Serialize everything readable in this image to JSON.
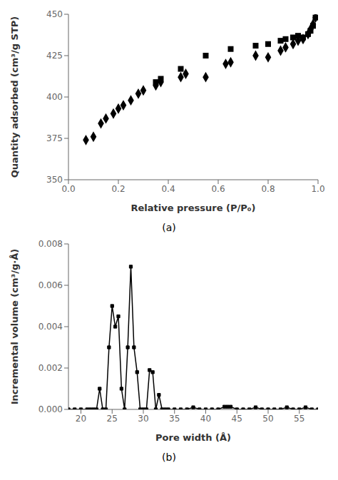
{
  "chart_data": [
    {
      "type": "scatter",
      "xlabel": "Relative pressure (P/P₀)",
      "ylabel": "Quantity adsorbed (cm³/g STP)",
      "annotation": "(a)",
      "xlim": [
        0,
        1.0
      ],
      "xticks": [
        {
          "value": 0,
          "label": "0.0"
        },
        0.2,
        0.4,
        0.6,
        0.8,
        {
          "value": 1.0,
          "label": "1.0"
        }
      ],
      "ylim": [
        350,
        450
      ],
      "yticks": [
        350,
        375,
        400,
        425,
        450
      ],
      "grid": false,
      "series": [
        {
          "x": [
            0.07,
            0.1,
            0.13,
            0.15,
            0.18,
            0.2,
            0.22,
            0.25,
            0.28,
            0.3,
            0.35,
            0.37,
            0.45,
            0.47,
            0.55,
            0.63,
            0.65,
            0.75,
            0.8,
            0.85,
            0.87,
            0.9,
            0.92,
            0.94,
            0.96,
            0.97,
            0.98,
            0.99
          ],
          "values": [
            374,
            376,
            384,
            387,
            390,
            393,
            395,
            398,
            402,
            404,
            407,
            409,
            412,
            414,
            412,
            420,
            421,
            425,
            424,
            428,
            430,
            432,
            434,
            435,
            438,
            441,
            444,
            448
          ],
          "marker": "diamond",
          "color": "black"
        },
        {
          "x": [
            0.35,
            0.37,
            0.45,
            0.55,
            0.65,
            0.75,
            0.8,
            0.85,
            0.87,
            0.9,
            0.92,
            0.94,
            0.96,
            0.97,
            0.98,
            0.99
          ],
          "values": [
            409,
            411,
            417,
            425,
            429,
            431,
            432,
            434,
            435,
            436,
            437,
            436,
            438,
            440,
            443,
            448
          ],
          "marker": "square",
          "color": "black"
        }
      ]
    },
    {
      "type": "line",
      "xlabel": "Pore width (Å)",
      "ylabel": "Incremental volume (cm³/g·Å)",
      "annotation": "(b)",
      "xlim": [
        18,
        58
      ],
      "xticks": [
        20,
        25,
        30,
        35,
        40,
        45,
        50,
        55
      ],
      "ylim": [
        0,
        0.008
      ],
      "yticks": [
        {
          "value": 0,
          "label": "0.000"
        },
        0.002,
        0.004,
        0.006,
        0.008
      ],
      "grid": false,
      "color": "black",
      "marker": "square",
      "x": [
        18.0,
        19.0,
        20.0,
        21.0,
        21.5,
        22.0,
        22.5,
        23.0,
        23.5,
        24.0,
        24.5,
        25.0,
        25.5,
        26.0,
        26.5,
        27.0,
        27.5,
        28.0,
        28.5,
        29.0,
        29.5,
        30.0,
        30.5,
        31.0,
        31.5,
        32.0,
        32.5,
        33.0,
        33.5,
        34.0,
        35.0,
        36.0,
        37.0,
        38.0,
        39.0,
        40.0,
        41.0,
        42.0,
        43.0,
        43.5,
        44.0,
        45.0,
        46.0,
        47.0,
        48.0,
        49.0,
        50.0,
        51.0,
        52.0,
        53.0,
        54.0,
        55.0,
        56.0,
        57.0,
        58.0
      ],
      "values": [
        0.0,
        0.0,
        0.0,
        0.0,
        0.0,
        0.0,
        0.0,
        0.001,
        0.0,
        0.0,
        0.003,
        0.005,
        0.004,
        0.0045,
        0.001,
        0.0,
        0.003,
        0.0069,
        0.003,
        0.0018,
        0.0,
        0.0,
        0.0,
        0.0019,
        0.0018,
        0.0,
        0.0007,
        0.0,
        0.0,
        0.0,
        0.0,
        0.0,
        0.0,
        0.0001,
        0.0,
        0.0,
        0.0,
        0.0,
        0.00013,
        0.00013,
        0.00013,
        0.0,
        0.0,
        0.0,
        0.0001,
        0.0,
        0.0,
        0.0,
        0.0,
        0.0001,
        0.0,
        0.0,
        0.0001,
        0.0,
        0.0
      ]
    }
  ]
}
